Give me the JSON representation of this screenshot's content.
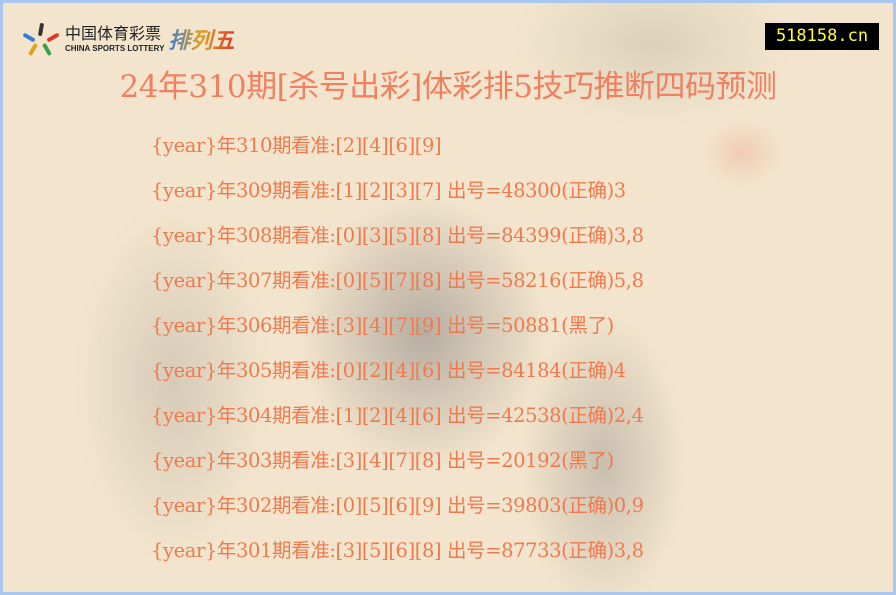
{
  "header": {
    "logo_cn": "中国体育彩票",
    "logo_en": "CHINA SPORTS LOTTERY",
    "logo_game": "排列五",
    "site": "518158.cn"
  },
  "title": "24年310期[杀号出彩]体彩排5技巧推断四码预测",
  "rows": [
    "{year}年310期看准:[2][4][6][9]",
    "{year}年309期看准:[1][2][3][7] 出号=48300(正确)3",
    "{year}年308期看准:[0][3][5][8] 出号=84399(正确)3,8",
    "{year}年307期看准:[0][5][7][8] 出号=58216(正确)5,8",
    "{year}年306期看准:[3][4][7][9] 出号=50881(黑了)",
    "{year}年305期看准:[0][2][4][6] 出号=84184(正确)4",
    "{year}年304期看准:[1][2][4][6] 出号=42538(正确)2,4",
    "{year}年303期看准:[3][4][7][8] 出号=20192(黑了)",
    "{year}年302期看准:[0][5][6][9] 出号=39803(正确)0,9",
    "{year}年301期看准:[3][5][6][8] 出号=87733(正确)3,8"
  ],
  "colors": {
    "text": "#ee7a4e",
    "border": "#a9c6f0",
    "site_text": "#ffff33"
  }
}
